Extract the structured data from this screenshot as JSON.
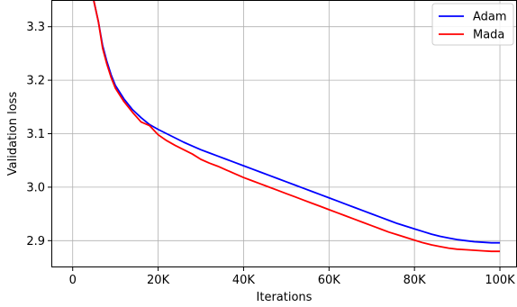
{
  "chart_data": {
    "type": "line",
    "title": "",
    "xlabel": "Iterations",
    "ylabel": "Validation loss",
    "xlim": [
      -5000,
      104000
    ],
    "ylim": [
      2.85,
      3.35
    ],
    "grid": true,
    "legend_position": "top-right",
    "x_ticks": [
      {
        "value": 0,
        "label": "0"
      },
      {
        "value": 20000,
        "label": "20K"
      },
      {
        "value": 40000,
        "label": "40K"
      },
      {
        "value": 60000,
        "label": "60K"
      },
      {
        "value": 80000,
        "label": "80K"
      },
      {
        "value": 100000,
        "label": "100K"
      }
    ],
    "y_ticks": [
      {
        "value": 2.9,
        "label": "2.9"
      },
      {
        "value": 3.0,
        "label": "3.0"
      },
      {
        "value": 3.1,
        "label": "3.1"
      },
      {
        "value": 3.2,
        "label": "3.2"
      },
      {
        "value": 3.3,
        "label": "3.3"
      }
    ],
    "series": [
      {
        "name": "Adam",
        "color": "#0000ff",
        "points": [
          [
            4900,
            3.35
          ],
          [
            6000,
            3.31
          ],
          [
            7000,
            3.265
          ],
          [
            8000,
            3.235
          ],
          [
            9000,
            3.21
          ],
          [
            10000,
            3.19
          ],
          [
            12000,
            3.165
          ],
          [
            14000,
            3.145
          ],
          [
            16000,
            3.13
          ],
          [
            18000,
            3.117
          ],
          [
            20000,
            3.108
          ],
          [
            22000,
            3.1
          ],
          [
            24000,
            3.092
          ],
          [
            26000,
            3.084
          ],
          [
            28000,
            3.077
          ],
          [
            30000,
            3.07
          ],
          [
            32000,
            3.064
          ],
          [
            34000,
            3.058
          ],
          [
            36000,
            3.052
          ],
          [
            38000,
            3.046
          ],
          [
            40000,
            3.04
          ],
          [
            42000,
            3.034
          ],
          [
            44000,
            3.028
          ],
          [
            46000,
            3.022
          ],
          [
            48000,
            3.016
          ],
          [
            50000,
            3.01
          ],
          [
            52000,
            3.004
          ],
          [
            54000,
            2.998
          ],
          [
            56000,
            2.992
          ],
          [
            58000,
            2.986
          ],
          [
            60000,
            2.98
          ],
          [
            62000,
            2.974
          ],
          [
            64000,
            2.968
          ],
          [
            66000,
            2.962
          ],
          [
            68000,
            2.956
          ],
          [
            70000,
            2.95
          ],
          [
            72000,
            2.944
          ],
          [
            74000,
            2.938
          ],
          [
            76000,
            2.932
          ],
          [
            78000,
            2.927
          ],
          [
            80000,
            2.922
          ],
          [
            82000,
            2.917
          ],
          [
            84000,
            2.912
          ],
          [
            86000,
            2.908
          ],
          [
            88000,
            2.905
          ],
          [
            90000,
            2.902
          ],
          [
            92000,
            2.9
          ],
          [
            94000,
            2.898
          ],
          [
            96000,
            2.897
          ],
          [
            98000,
            2.896
          ],
          [
            100000,
            2.896
          ]
        ]
      },
      {
        "name": "Mada",
        "color": "#ff0000",
        "points": [
          [
            4900,
            3.35
          ],
          [
            6000,
            3.31
          ],
          [
            7000,
            3.26
          ],
          [
            8000,
            3.23
          ],
          [
            9000,
            3.205
          ],
          [
            10000,
            3.185
          ],
          [
            12000,
            3.16
          ],
          [
            14000,
            3.14
          ],
          [
            16000,
            3.122
          ],
          [
            18000,
            3.115
          ],
          [
            20000,
            3.098
          ],
          [
            22000,
            3.087
          ],
          [
            24000,
            3.078
          ],
          [
            26000,
            3.07
          ],
          [
            28000,
            3.062
          ],
          [
            30000,
            3.052
          ],
          [
            32000,
            3.045
          ],
          [
            34000,
            3.039
          ],
          [
            36000,
            3.032
          ],
          [
            38000,
            3.025
          ],
          [
            40000,
            3.018
          ],
          [
            42000,
            3.012
          ],
          [
            44000,
            3.006
          ],
          [
            46000,
            3.0
          ],
          [
            48000,
            2.994
          ],
          [
            50000,
            2.988
          ],
          [
            52000,
            2.982
          ],
          [
            54000,
            2.976
          ],
          [
            56000,
            2.97
          ],
          [
            58000,
            2.964
          ],
          [
            60000,
            2.958
          ],
          [
            62000,
            2.952
          ],
          [
            64000,
            2.946
          ],
          [
            66000,
            2.94
          ],
          [
            68000,
            2.934
          ],
          [
            70000,
            2.928
          ],
          [
            72000,
            2.922
          ],
          [
            74000,
            2.916
          ],
          [
            76000,
            2.911
          ],
          [
            78000,
            2.906
          ],
          [
            80000,
            2.901
          ],
          [
            82000,
            2.896
          ],
          [
            84000,
            2.892
          ],
          [
            86000,
            2.889
          ],
          [
            88000,
            2.886
          ],
          [
            90000,
            2.884
          ],
          [
            92000,
            2.883
          ],
          [
            94000,
            2.882
          ],
          [
            96000,
            2.881
          ],
          [
            98000,
            2.88
          ],
          [
            100000,
            2.88
          ]
        ]
      }
    ]
  }
}
